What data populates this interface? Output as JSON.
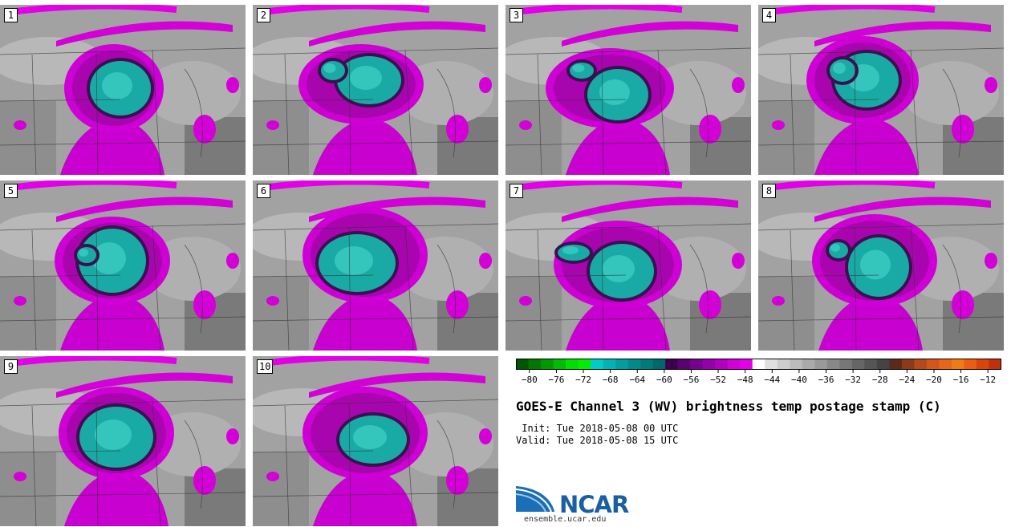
{
  "figure": {
    "title": "GOES-E Channel 3 (WV) brightness temp postage stamp (C)",
    "init": " Init: Tue 2018-05-08 00 UTC",
    "valid": "Valid: Tue 2018-05-08 15 UTC"
  },
  "members": [
    {
      "label": "1",
      "core": [
        [
          150,
          110,
          38,
          34
        ]
      ],
      "ring": [
        [
          142,
          110,
          62,
          55
        ]
      ],
      "south": 145
    },
    {
      "label": "2",
      "core": [
        [
          460,
          100,
          40,
          30
        ],
        [
          415,
          88,
          15,
          12
        ]
      ],
      "ring": [
        [
          450,
          105,
          78,
          50
        ]
      ],
      "south": 460
    },
    {
      "label": "3",
      "core": [
        [
          770,
          118,
          38,
          32
        ],
        [
          725,
          88,
          15,
          10
        ]
      ],
      "ring": [
        [
          760,
          110,
          80,
          50
        ]
      ],
      "south": 775
    },
    {
      "label": "4",
      "core": [
        [
          1080,
          100,
          40,
          34
        ],
        [
          1050,
          88,
          16,
          14
        ]
      ],
      "ring": [
        [
          1075,
          100,
          70,
          55
        ]
      ],
      "south": 1085
    },
    {
      "label": "5",
      "core": [
        [
          140,
          325,
          42,
          40
        ],
        [
          108,
          318,
          12,
          10
        ]
      ],
      "ring": [
        [
          140,
          325,
          72,
          55
        ]
      ],
      "south": 145
    },
    {
      "label": "6",
      "core": [
        [
          445,
          328,
          48,
          36
        ]
      ],
      "ring": [
        [
          455,
          318,
          78,
          60
        ]
      ],
      "south": 460
    },
    {
      "label": "7",
      "core": [
        [
          775,
          338,
          40,
          34
        ],
        [
          715,
          315,
          20,
          10
        ]
      ],
      "ring": [
        [
          770,
          330,
          80,
          55
        ]
      ],
      "south": 775
    },
    {
      "label": "8",
      "core": [
        [
          1095,
          333,
          38,
          37
        ],
        [
          1045,
          312,
          12,
          10
        ]
      ],
      "ring": [
        [
          1090,
          325,
          78,
          58
        ]
      ],
      "south": 1090
    },
    {
      "label": "9",
      "core": [
        [
          145,
          545,
          46,
          38
        ]
      ],
      "ring": [
        [
          145,
          540,
          72,
          58
        ]
      ],
      "south": 150
    },
    {
      "label": "10",
      "core": [
        [
          465,
          548,
          42,
          30
        ]
      ],
      "ring": [
        [
          455,
          540,
          78,
          58
        ]
      ],
      "south": 460
    }
  ],
  "colorbar": {
    "ticks": [
      "−80",
      "−76",
      "−72",
      "−68",
      "−64",
      "−60",
      "−56",
      "−52",
      "−48",
      "−44",
      "−40",
      "−36",
      "−32",
      "−28",
      "−24",
      "−20",
      "−16",
      "−12"
    ],
    "colors": [
      "#005500",
      "#007700",
      "#009900",
      "#00bb00",
      "#00dd00",
      "#00ee00",
      "#00cccc",
      "#00b4b4",
      "#009e9e",
      "#008a8a",
      "#007a7a",
      "#006a6a",
      "#3d0050",
      "#5a0070",
      "#780090",
      "#9500aa",
      "#b300c0",
      "#d000d6",
      "#e300e8",
      "#ffffff",
      "#e0e0e0",
      "#cccccc",
      "#bbbbbb",
      "#aaaaaa",
      "#999999",
      "#888888",
      "#777777",
      "#666666",
      "#555555",
      "#444444",
      "#5c2a1a",
      "#8c3a1a",
      "#b44a1a",
      "#d4561a",
      "#e8661a",
      "#f07a14",
      "#ee5c10",
      "#d8440c",
      "#c0300a"
    ]
  },
  "logo": {
    "name": "NCAR",
    "url": "ensemble.ucar.edu"
  }
}
